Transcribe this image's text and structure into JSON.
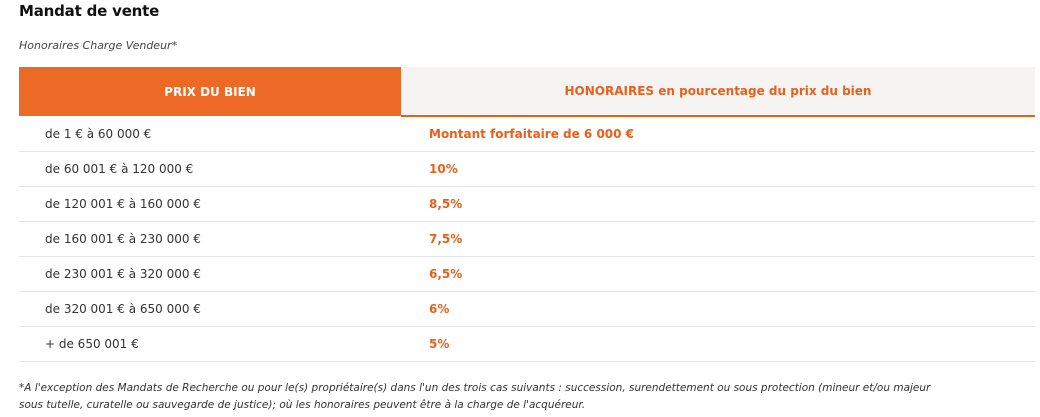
{
  "header": {
    "title": "Mandat de vente",
    "subtitle": "Honoraires Charge Vendeur*"
  },
  "table": {
    "headers": {
      "price": "PRIX DU BIEN",
      "fees": "HONORAIRES en pourcentage du prix du bien"
    },
    "rows": [
      {
        "price": "de 1 € à 60 000 €",
        "fee": "Montant forfaitaire de 6 000 €"
      },
      {
        "price": "de 60 001 € à 120 000 €",
        "fee": "10%"
      },
      {
        "price": "de 120 001 € à 160 000 €",
        "fee": "8,5%"
      },
      {
        "price": "de 160 001 € à 230 000 €",
        "fee": "7,5%"
      },
      {
        "price": "de 230 001 € à 320 000 €",
        "fee": "6,5%"
      },
      {
        "price": "de 320 001 € à 650 000 €",
        "fee": "6%"
      },
      {
        "price": "+ de 650 001 €",
        "fee": "5%"
      }
    ]
  },
  "footnote": {
    "line1": "*A l'exception des Mandats de Recherche ou pour le(s) propriétaire(s) dans l'un des trois cas suivants : succession, surendettement ou sous protection (mineur et/ou majeur",
    "line2": "sous tutelle, curatelle ou sauvegarde de justice); où les honoraires peuvent être à la charge de l'acquéreur."
  },
  "colors": {
    "accent": "#ec6a26",
    "accent_text": "#e8601c",
    "header_alt_bg": "#f6f4f2"
  }
}
